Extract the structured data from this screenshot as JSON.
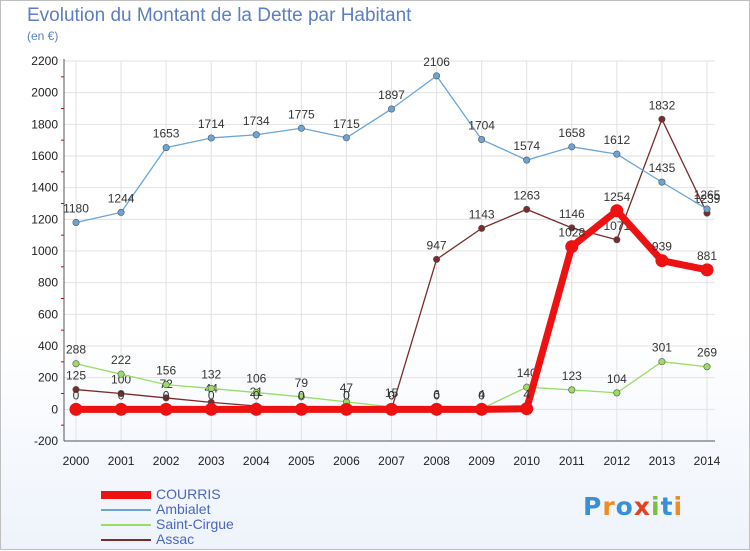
{
  "title": "Evolution du Montant de la Dette par Habitant",
  "subtitle": "(en €)",
  "logo_text": "Proxiti",
  "chart_data": {
    "type": "line",
    "title": "Evolution du Montant de la Dette par Habitant",
    "ylabel": "(en €)",
    "xlabel": "",
    "ylim": [
      -200,
      2200
    ],
    "ytick_step": 200,
    "grid": true,
    "legend_position": "bottom-left",
    "categories": [
      "2000",
      "2001",
      "2002",
      "2003",
      "2004",
      "2005",
      "2006",
      "2007",
      "2008",
      "2009",
      "2010",
      "2011",
      "2012",
      "2013",
      "2014"
    ],
    "series": [
      {
        "name": "COURRIS",
        "color": "#ee1111",
        "values": [
          0,
          0,
          0,
          0,
          0,
          0,
          0,
          0,
          0,
          0,
          4,
          1028,
          1254,
          939,
          881
        ]
      },
      {
        "name": "Ambialet",
        "color": "#6ba5d8",
        "values": [
          1180,
          1244,
          1653,
          1714,
          1734,
          1775,
          1715,
          1897,
          2106,
          1704,
          1574,
          1658,
          1612,
          1435,
          1265
        ]
      },
      {
        "name": "Saint-Cirgue",
        "color": "#99dd66",
        "values": [
          288,
          222,
          156,
          132,
          106,
          79,
          47,
          15,
          6,
          4,
          140,
          123,
          104,
          301,
          269
        ]
      },
      {
        "name": "Assac",
        "color": "#7a2b2b",
        "values": [
          125,
          100,
          72,
          44,
          21,
          0,
          0,
          0,
          947,
          1143,
          1263,
          1146,
          1071,
          1832,
          1239
        ]
      }
    ]
  }
}
